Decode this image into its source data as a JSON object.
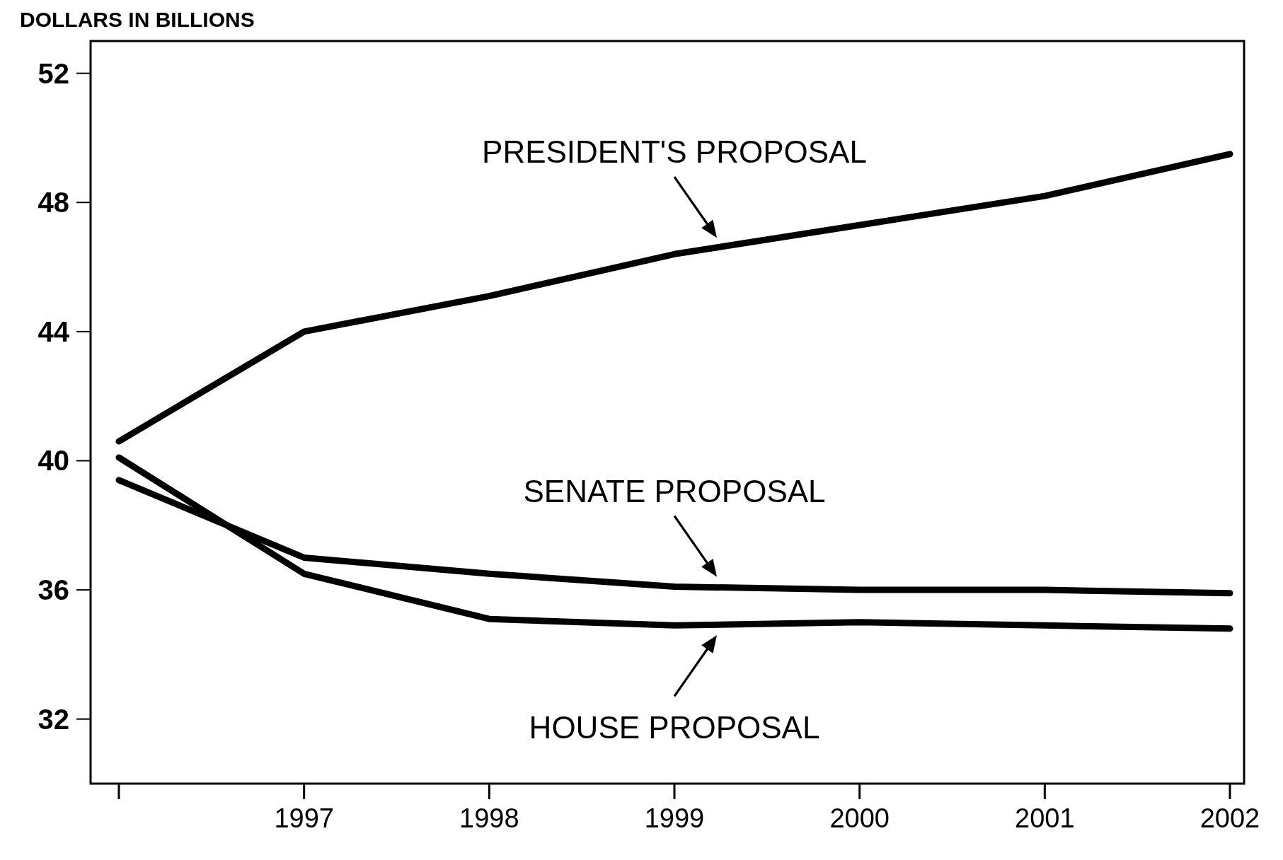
{
  "chart_data": {
    "type": "line",
    "ylabel": "DOLLARS IN BILLIONS",
    "categories": [
      null,
      "1997",
      "1998",
      "1999",
      "2000",
      "2001",
      "2002"
    ],
    "ylim": [
      30,
      53
    ],
    "yticks": [
      32,
      36,
      40,
      44,
      48,
      52
    ],
    "grid": false,
    "marker": "none",
    "line_style": "solid",
    "series": [
      {
        "color": "#000000",
        "values": [
          40.6,
          44.0,
          45.1,
          46.4,
          47.3,
          48.2,
          49.5
        ]
      },
      {
        "color": "#000000",
        "values": [
          39.4,
          37.0,
          36.5,
          36.1,
          36.0,
          36.0,
          35.9
        ]
      },
      {
        "color": "#000000",
        "values": [
          40.1,
          36.5,
          35.1,
          34.9,
          35.0,
          34.9,
          34.8
        ]
      }
    ],
    "annotations": [
      {
        "text": "PRESIDENT'S PROPOSAL",
        "x": "1999",
        "y": 46.6
      },
      {
        "text": "SENATE PROPOSAL",
        "x": "1999",
        "y": 36.1
      },
      {
        "text": "HOUSE PROPOSAL",
        "x": "1999",
        "y": 34.9
      }
    ]
  }
}
